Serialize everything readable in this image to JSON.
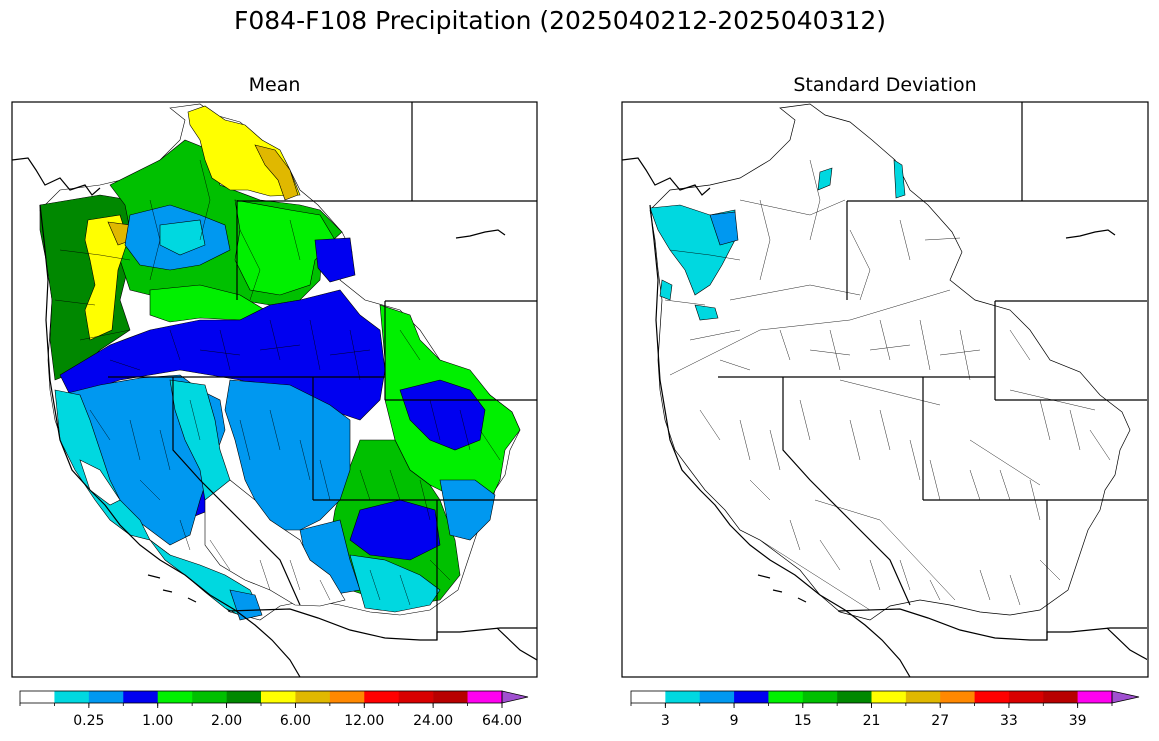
{
  "figure": {
    "title": "F084-F108 Precipitation (2025040212-2025040312)"
  },
  "panels": [
    {
      "title": "Mean",
      "colorbar": {
        "tick_labels": [
          "0.25",
          "1.00",
          "2.00",
          "6.00",
          "12.00",
          "24.00",
          "64.00"
        ],
        "colors": [
          "#ffffff",
          "#00d8e0",
          "#0098f0",
          "#0000f0",
          "#00f000",
          "#00c000",
          "#008800",
          "#ffff00",
          "#e0b800",
          "#ff8800",
          "#ff0000",
          "#d80000",
          "#b80000",
          "#ff00f0",
          "#a050d0"
        ],
        "extend": "max"
      }
    },
    {
      "title": "Standard Deviation",
      "colorbar": {
        "tick_labels": [
          "3",
          "9",
          "15",
          "21",
          "27",
          "33",
          "39"
        ],
        "colors": [
          "#ffffff",
          "#00d8e0",
          "#0098f0",
          "#0000f0",
          "#00f000",
          "#00c000",
          "#008800",
          "#ffff00",
          "#e0b800",
          "#ff8800",
          "#ff0000",
          "#d80000",
          "#b80000",
          "#ff00f0",
          "#a050d0"
        ],
        "extend": "max"
      }
    }
  ]
}
